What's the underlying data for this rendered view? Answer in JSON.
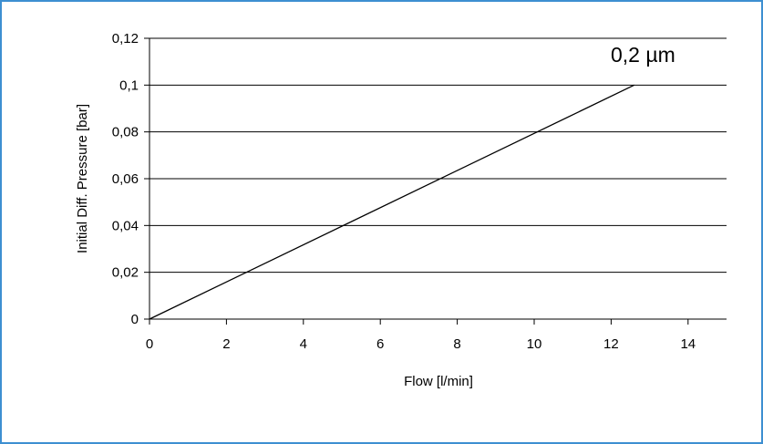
{
  "chart_data": {
    "type": "line",
    "title": "",
    "xlabel": "Flow [l/min]",
    "ylabel": "Initial Diff. Pressure [bar]",
    "xlim": [
      0,
      15
    ],
    "ylim": [
      0,
      0.12
    ],
    "x_ticks": [
      0,
      2,
      4,
      6,
      8,
      10,
      12,
      14
    ],
    "x_tick_labels": [
      "0",
      "2",
      "4",
      "6",
      "8",
      "10",
      "12",
      "14"
    ],
    "y_ticks": [
      0,
      0.02,
      0.04,
      0.06,
      0.08,
      0.1,
      0.12
    ],
    "y_tick_labels": [
      "0",
      "0,02",
      "0,04",
      "0,06",
      "0,08",
      "0,1",
      "0,12"
    ],
    "grid": "horizontal",
    "legend": "none",
    "annotations": [
      {
        "text": "0,2 µm"
      }
    ],
    "series": [
      {
        "color": "#000000",
        "x": [
          0,
          12.6
        ],
        "y": [
          0,
          0.1
        ]
      }
    ]
  },
  "colors": {
    "frame_border": "#3d8fd1",
    "gridline": "#000000",
    "line": "#000000"
  }
}
